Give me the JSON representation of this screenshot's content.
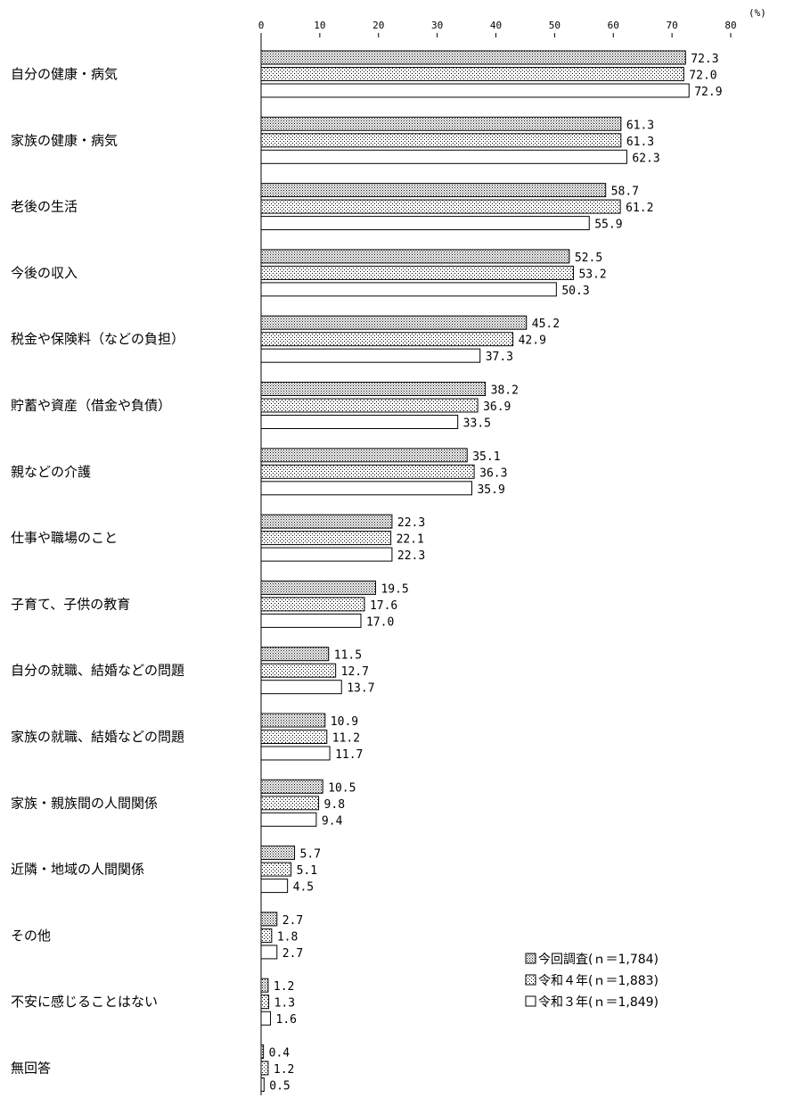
{
  "chart_data": {
    "type": "bar",
    "orientation": "horizontal",
    "unit_label": "(%)",
    "xlim": [
      0,
      80
    ],
    "xticks": [
      0,
      10,
      20,
      30,
      40,
      50,
      60,
      70,
      80
    ],
    "legend_position": "bottom-right",
    "categories": [
      "自分の健康・病気",
      "家族の健康・病気",
      "老後の生活",
      "今後の収入",
      "税金や保険料（などの負担）",
      "貯蓄や資産（借金や負債）",
      "親などの介護",
      "仕事や職場のこと",
      "子育て、子供の教育",
      "自分の就職、結婚などの問題",
      "家族の就職、結婚などの問題",
      "家族・親族間の人間関係",
      "近隣・地域の人間関係",
      "その他",
      "不安に感じることはない",
      "無回答"
    ],
    "series": [
      {
        "name": "今回調査(ｎ＝1,784)",
        "pattern": "dense-dots",
        "values": [
          72.3,
          61.3,
          58.7,
          52.5,
          45.2,
          38.2,
          35.1,
          22.3,
          19.5,
          11.5,
          10.9,
          10.5,
          5.7,
          2.7,
          1.2,
          0.4
        ]
      },
      {
        "name": "令和４年(ｎ＝1,883)",
        "pattern": "sparse-dots",
        "values": [
          72.0,
          61.3,
          61.2,
          53.2,
          42.9,
          36.9,
          36.3,
          22.1,
          17.6,
          12.7,
          11.2,
          9.8,
          5.1,
          1.8,
          1.3,
          1.2
        ]
      },
      {
        "name": "令和３年(ｎ＝1,849)",
        "pattern": "none",
        "values": [
          72.9,
          62.3,
          55.9,
          50.3,
          37.3,
          33.5,
          35.9,
          22.3,
          17.0,
          13.7,
          11.7,
          9.4,
          4.5,
          2.7,
          1.6,
          0.5
        ]
      }
    ]
  }
}
